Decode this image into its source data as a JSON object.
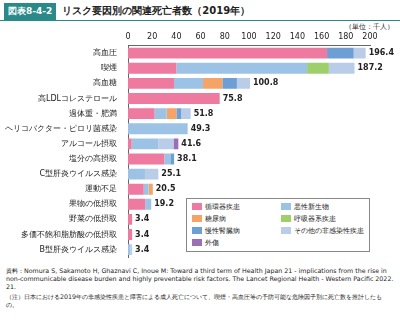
{
  "chart_data": {
    "type": "bar",
    "orientation": "horizontal",
    "stacked": true,
    "figure_label": "図表8-4-2",
    "title": "リスク要因別の関連死亡者数（2019年）",
    "unit_label": "（単位：千人）",
    "categories": [
      "高血圧",
      "喫煙",
      "高血糖",
      "高LDLコレステロール",
      "過体重・肥満",
      "ヘリコバクター・ピロリ菌感染",
      "アルコール摂取",
      "塩分の高摂取",
      "C型肝炎ウイルス感染",
      "運動不足",
      "果物の低摂取",
      "野菜の低摂取",
      "多価不飽和脂肪酸の低摂取",
      "B型肝炎ウイルス感染"
    ],
    "series": [
      {
        "name": "循環器疾患",
        "color": "#ee7aa0",
        "values": [
          164.5,
          40,
          38,
          75.8,
          22,
          0,
          3,
          30,
          0,
          13,
          14.2,
          3.4,
          3.4,
          0
        ]
      },
      {
        "name": "悪性新生物",
        "color": "#9cc3e6",
        "values": [
          0,
          108,
          24,
          0,
          10,
          49.3,
          22,
          5,
          14,
          4,
          5,
          0,
          0,
          2
        ]
      },
      {
        "name": "糖尿病",
        "color": "#f4a466",
        "values": [
          0,
          0,
          16,
          0,
          8,
          0,
          0,
          0,
          0,
          3.5,
          0,
          0,
          0,
          0
        ]
      },
      {
        "name": "呼吸器系疾患",
        "color": "#9fcf6a",
        "values": [
          0,
          18,
          0,
          0,
          0,
          0,
          0,
          0,
          0,
          0,
          0,
          0,
          0,
          0
        ]
      },
      {
        "name": "慢性腎臓病",
        "color": "#6d9fd4",
        "values": [
          22,
          0,
          12,
          0,
          4,
          0,
          0,
          3.1,
          0,
          0,
          0,
          0,
          0,
          0
        ]
      },
      {
        "name": "その他の非感染性疾患",
        "color": "#b9cde8",
        "values": [
          9.9,
          21.2,
          10.8,
          0,
          7.8,
          0,
          12.6,
          0,
          11.1,
          0,
          0,
          0,
          0,
          1.4
        ]
      },
      {
        "name": "外傷",
        "color": "#9b6fb5",
        "values": [
          0,
          0,
          0,
          0,
          0,
          0,
          4,
          0,
          0,
          0,
          0,
          0,
          0,
          0
        ]
      }
    ],
    "totals": [
      196.4,
      187.2,
      100.8,
      75.8,
      51.8,
      49.3,
      41.6,
      38.1,
      25.1,
      20.5,
      19.2,
      3.4,
      3.4,
      3.4
    ],
    "xlim": [
      0,
      200
    ],
    "xticks": [
      0,
      20,
      40,
      60,
      80,
      100,
      120,
      140,
      160,
      180,
      200
    ],
    "grid": false,
    "legend": "lower right",
    "source": "資料：Nomura S, Sakamoto H, Ghaznavi C, Inoue M: Toward a third term of Health Japan 21 - implications from the rise in non-communicable disease burden and highly preventable risk factors. The Lancet Regional Health - Western Pacific 2022. 21.",
    "note": "（注）日本における2019年の非感染性疾患と障害による成人死亡について、喫煙・高血圧等の予防可能な危険因子別に死亡数を推計したもの。"
  }
}
